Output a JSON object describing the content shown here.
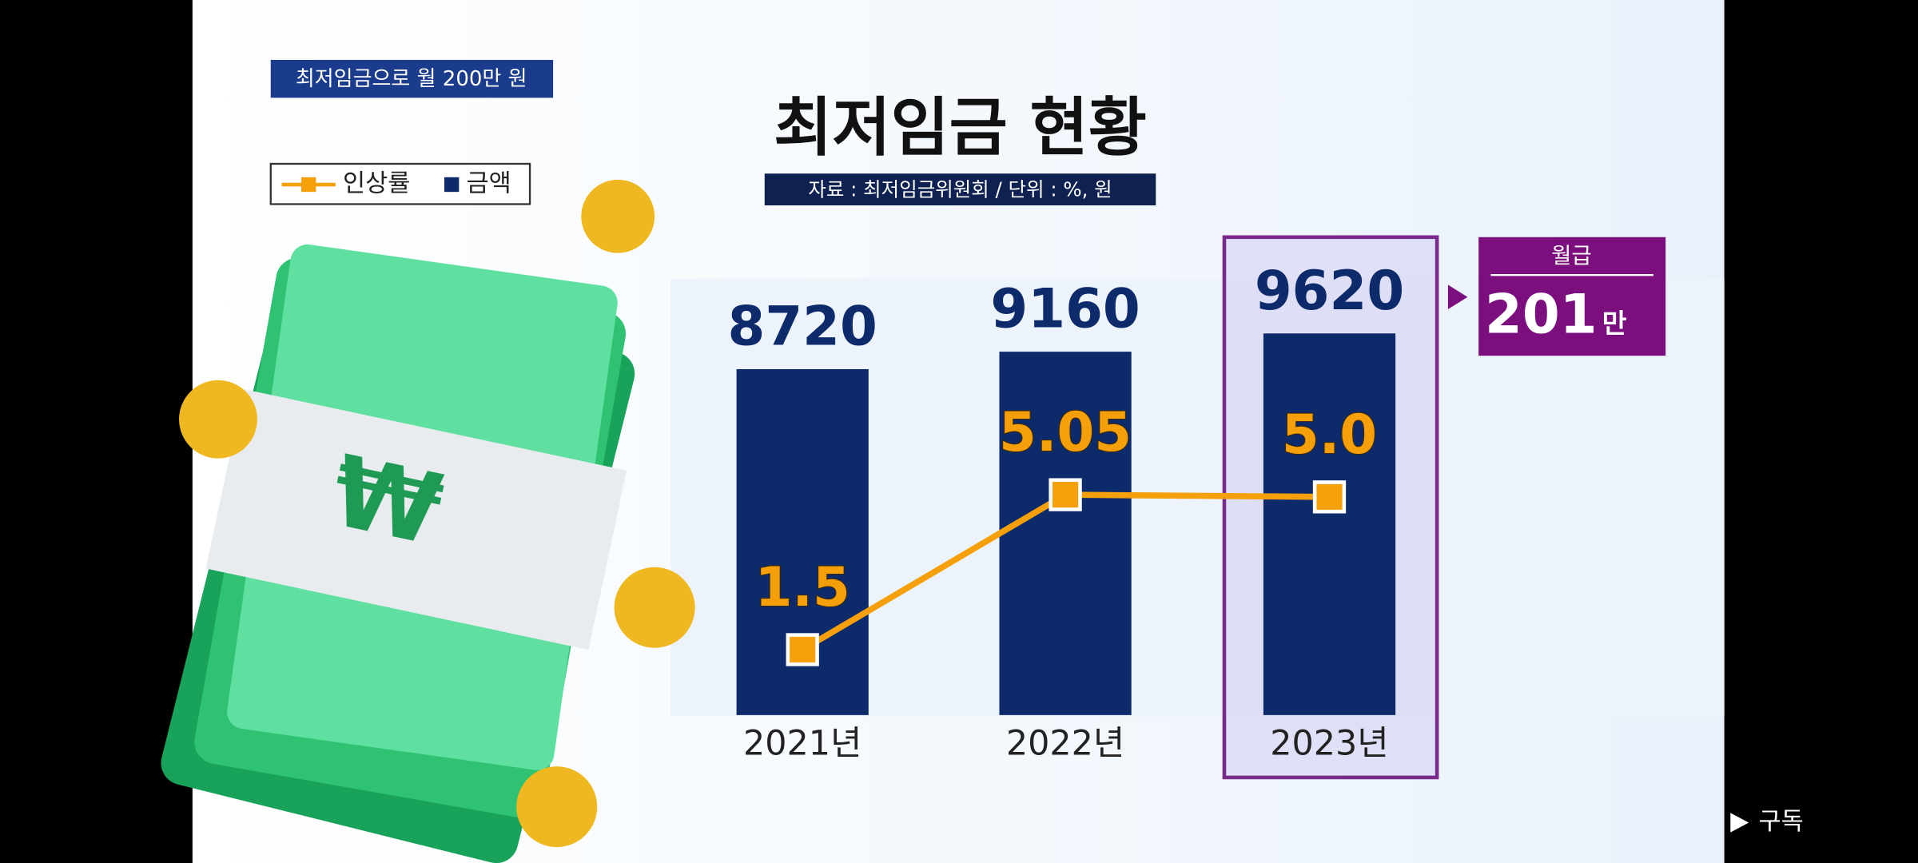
{
  "chart_data": {
    "type": "bar",
    "tag": "최저임금으로 월 200만 원",
    "title": "최저임금 현황",
    "source": "자료 : 최저임금위원회 / 단위 : %, 원",
    "categories": [
      "2021년",
      "2022년",
      "2023년"
    ],
    "series": [
      {
        "name": "인상률",
        "type": "line",
        "color": "#f5a00a",
        "axis": "y2",
        "values": [
          1.5,
          5.05,
          5.0
        ],
        "value_labels": [
          "1.5",
          "5.05",
          "5.0"
        ]
      },
      {
        "name": "금액",
        "type": "bar",
        "color": "#0d2a6b",
        "values": [
          8720,
          9160,
          9620
        ]
      }
    ],
    "ylim": [
      0,
      11000
    ],
    "y2lim": [
      0,
      10
    ],
    "callout": {
      "label": "월급",
      "value": "201",
      "unit": "만"
    }
  },
  "ui": {
    "subscribe": "구독"
  }
}
